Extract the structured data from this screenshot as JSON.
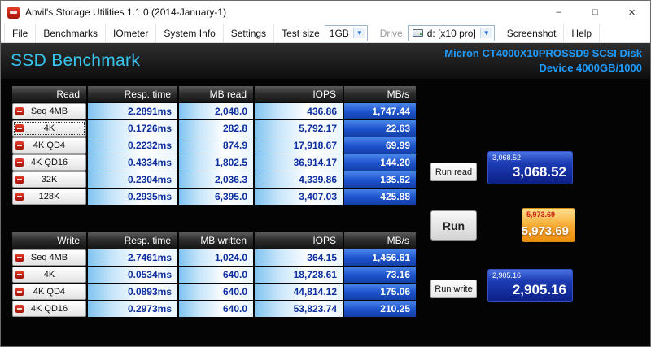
{
  "window": {
    "title": "Anvil's Storage Utilities 1.1.0 (2014-January-1)",
    "controls": {
      "minimize": "–",
      "maximize": "□",
      "close": "✕"
    }
  },
  "menu": {
    "file": "File",
    "benchmarks": "Benchmarks",
    "iometer": "IOmeter",
    "system_info": "System Info",
    "settings": "Settings",
    "test_size_label": "Test size",
    "test_size_value": "1GB",
    "drive_label": "Drive",
    "drive_value": "d: [x10 pro]",
    "screenshot": "Screenshot",
    "help": "Help",
    "caret": "▼"
  },
  "header": {
    "title": "SSD Benchmark",
    "device_name": "Micron CT4000X10PROSSD9 SCSI Disk",
    "device_info": "Device 4000GB/1000"
  },
  "read": {
    "headers": {
      "label": "Read",
      "resp": "Resp. time",
      "mb": "MB read",
      "iops": "IOPS",
      "mbs": "MB/s"
    },
    "rows": [
      {
        "label": "Seq 4MB",
        "resp": "2.2891ms",
        "mb": "2,048.0",
        "iops": "436.86",
        "mbs": "1,747.44"
      },
      {
        "label": "4K",
        "resp": "0.1726ms",
        "mb": "282.8",
        "iops": "5,792.17",
        "mbs": "22.63"
      },
      {
        "label": "4K QD4",
        "resp": "0.2232ms",
        "mb": "874.9",
        "iops": "17,918.67",
        "mbs": "69.99"
      },
      {
        "label": "4K QD16",
        "resp": "0.4334ms",
        "mb": "1,802.5",
        "iops": "36,914.17",
        "mbs": "144.20"
      },
      {
        "label": "32K",
        "resp": "0.2304ms",
        "mb": "2,036.3",
        "iops": "4,339.86",
        "mbs": "135.62"
      },
      {
        "label": "128K",
        "resp": "0.2935ms",
        "mb": "6,395.0",
        "iops": "3,407.03",
        "mbs": "425.88"
      }
    ]
  },
  "write": {
    "headers": {
      "label": "Write",
      "resp": "Resp. time",
      "mb": "MB written",
      "iops": "IOPS",
      "mbs": "MB/s"
    },
    "rows": [
      {
        "label": "Seq 4MB",
        "resp": "2.7461ms",
        "mb": "1,024.0",
        "iops": "364.15",
        "mbs": "1,456.61"
      },
      {
        "label": "4K",
        "resp": "0.0534ms",
        "mb": "640.0",
        "iops": "18,728.61",
        "mbs": "73.16"
      },
      {
        "label": "4K QD4",
        "resp": "0.0893ms",
        "mb": "640.0",
        "iops": "44,814.12",
        "mbs": "175.06"
      },
      {
        "label": "4K QD16",
        "resp": "0.2973ms",
        "mb": "640.0",
        "iops": "53,823.74",
        "mbs": "210.25"
      }
    ]
  },
  "actions": {
    "run_read": "Run read",
    "run": "Run",
    "run_write": "Run write"
  },
  "scores": {
    "read_small": "3,068.52",
    "read_big": "3,068.52",
    "total_small": "5,973.69",
    "total_big": "5,973.69",
    "write_small": "2,905.16",
    "write_big": "2,905.16"
  },
  "colors": {
    "accent_cyan": "#38c6f0",
    "device_blue": "#1e9cff",
    "cell_text_blue": "#0d2f9e",
    "score_blue": "#0c1f86",
    "score_orange": "#f7a82e",
    "brand_red": "#c01808"
  }
}
